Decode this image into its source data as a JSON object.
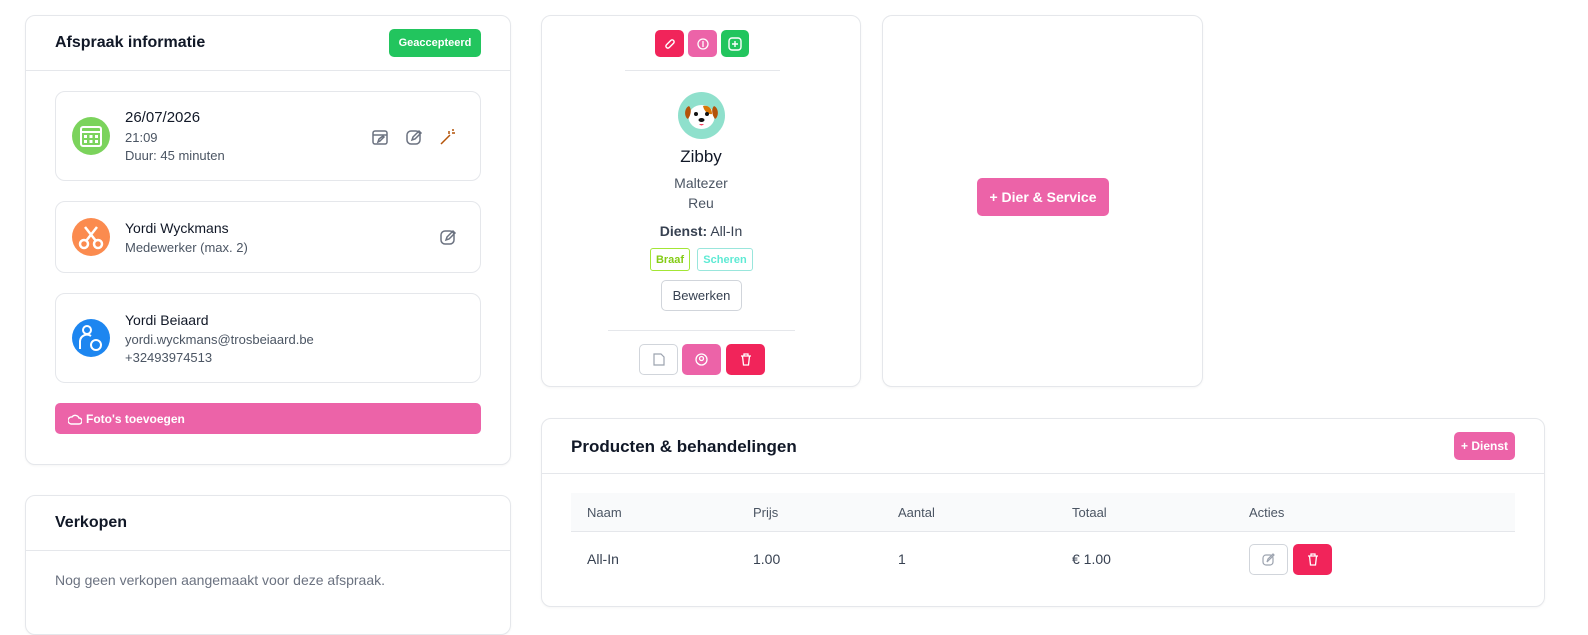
{
  "appointment": {
    "title": "Afspraak informatie",
    "status": "Geaccepteerd",
    "date": "26/07/2026",
    "time": "21:09",
    "duration": "Duur: 45 minuten",
    "employee": {
      "name": "Yordi Wyckmans",
      "role": "Medewerker (max. 2)"
    },
    "customer": {
      "name": "Yordi Beiaard",
      "email": "yordi.wyckmans@trosbeiaard.be",
      "phone": "+32493974513"
    },
    "photos_button": "Foto's toevoegen"
  },
  "sales": {
    "title": "Verkopen",
    "empty": "Nog geen verkopen aangemaakt voor deze afspraak."
  },
  "pet": {
    "name": "Zibby",
    "breed": "Maltezer",
    "sex": "Reu",
    "service_label": "Dienst:",
    "service": "All-In",
    "tags": [
      "Braaf",
      "Scheren"
    ],
    "edit_button": "Bewerken"
  },
  "add_pet_button": "+ Dier & Service",
  "products": {
    "title": "Producten & behandelingen",
    "add_button": "+ Dienst",
    "columns": [
      "Naam",
      "Prijs",
      "Aantal",
      "Totaal",
      "Acties"
    ],
    "rows": [
      [
        "All-In",
        "1.00",
        1,
        "€ 1.00"
      ]
    ]
  }
}
